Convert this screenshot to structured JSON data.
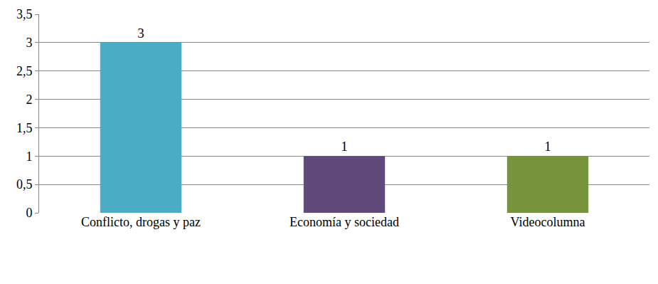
{
  "chart_data": {
    "type": "bar",
    "categories": [
      "Conflicto, drogas y paz",
      "Economía y sociedad",
      "Videocolumna"
    ],
    "values": [
      3,
      1,
      1
    ],
    "colors": [
      "#4bacc6",
      "#604a7b",
      "#77933c"
    ],
    "ylim": [
      0,
      3.5
    ],
    "yticks": [
      0,
      {
        "value": 0.5,
        "label": "0,5"
      },
      1,
      {
        "value": 1.5,
        "label": "1,5"
      },
      2,
      {
        "value": 2.5,
        "label": "2,5"
      },
      3,
      {
        "value": 3.5,
        "label": "3,5"
      }
    ],
    "grid": true,
    "data_labels": true
  }
}
